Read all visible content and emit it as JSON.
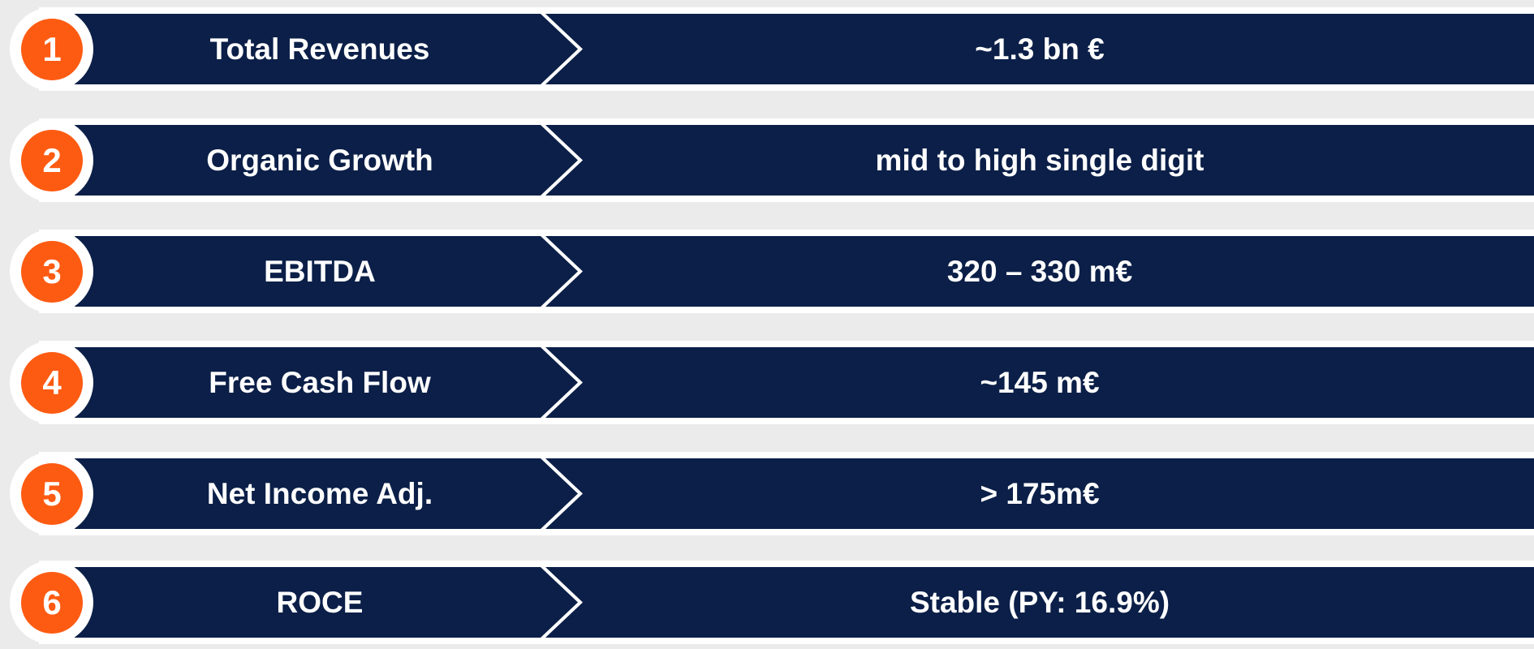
{
  "theme": {
    "accent": "#fe5b12",
    "navy": "#0b1f48",
    "background": "#ebebeb",
    "band": "#ffffff"
  },
  "rows": [
    {
      "number": "1",
      "label": "Total Revenues",
      "value": "~1.3 bn €"
    },
    {
      "number": "2",
      "label": "Organic Growth",
      "value": "mid to high single digit"
    },
    {
      "number": "3",
      "label": "EBITDA",
      "value": "320 – 330 m€"
    },
    {
      "number": "4",
      "label": "Free Cash Flow",
      "value": "~145 m€"
    },
    {
      "number": "5",
      "label": "Net Income Adj.",
      "value": "> 175m€"
    },
    {
      "number": "6",
      "label": "ROCE",
      "value": "Stable (PY: 16.9%)"
    }
  ]
}
